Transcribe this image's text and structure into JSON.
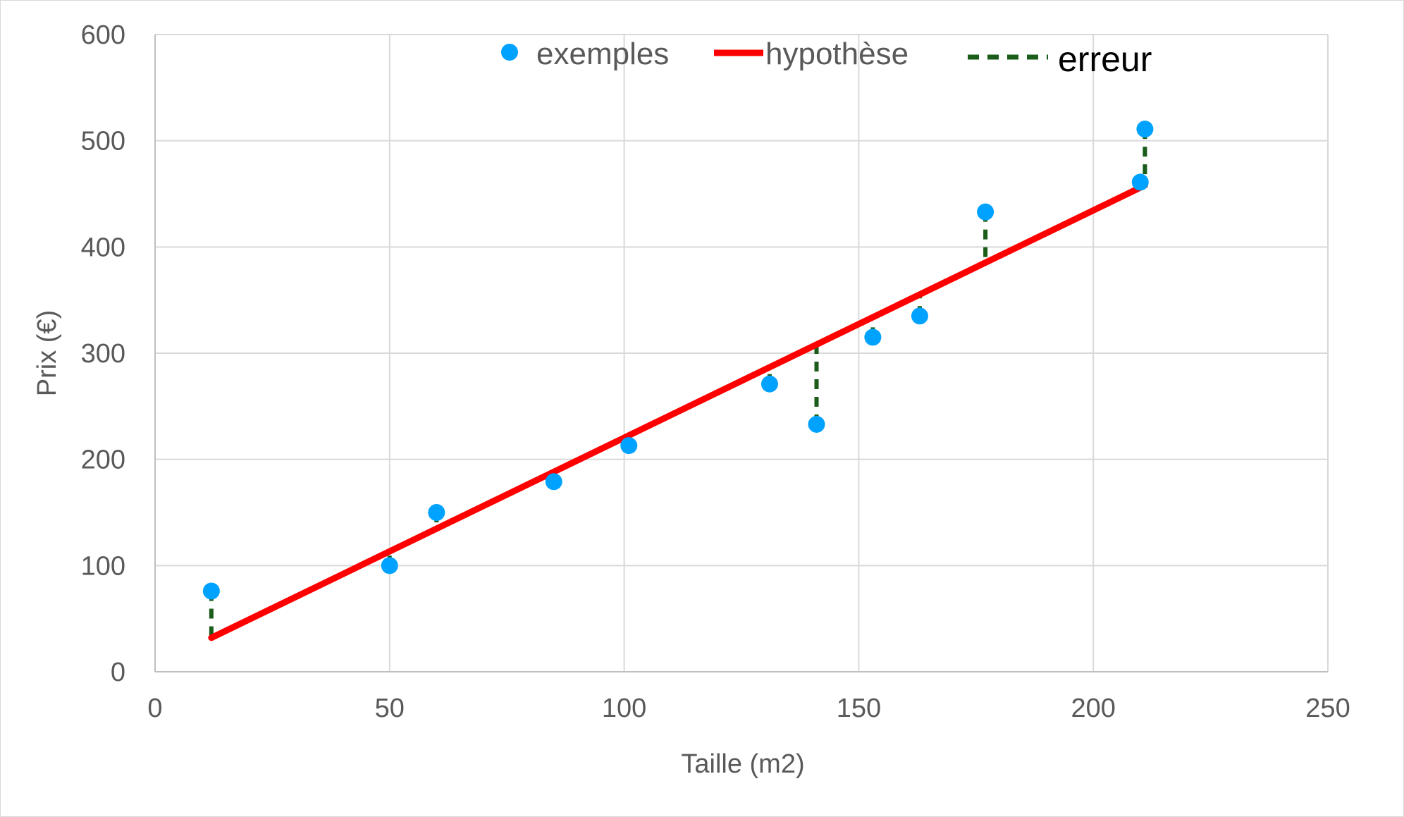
{
  "chart_data": {
    "type": "scatter",
    "title": "",
    "xlabel": "Taille (m2)",
    "ylabel": "Prix (€)",
    "xlim": [
      0,
      250
    ],
    "ylim": [
      0,
      600
    ],
    "x_ticks": [
      0,
      50,
      100,
      150,
      200,
      250
    ],
    "y_ticks": [
      0,
      100,
      200,
      300,
      400,
      500,
      600
    ],
    "grid": true,
    "legend_position": "top",
    "legend": {
      "points_label": "exemples",
      "line_label": "hypothèse",
      "error_label": "erreur"
    },
    "series": [
      {
        "name": "exemples",
        "color": "#00a2ff",
        "x": [
          12,
          50,
          60,
          85,
          101,
          131,
          141,
          153,
          163,
          177,
          210,
          211
        ],
        "y": [
          76,
          100,
          150,
          179,
          213,
          271,
          233,
          315,
          335,
          433,
          461,
          511
        ]
      }
    ],
    "hypothesis": {
      "name": "hypothèse",
      "color": "#ff0000",
      "x": [
        12,
        211
      ],
      "y": [
        32,
        458
      ]
    },
    "error_color": "#1a5c1a"
  }
}
